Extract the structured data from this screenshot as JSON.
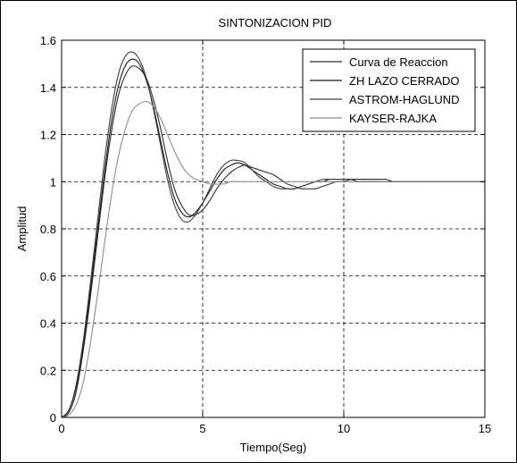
{
  "chart_data": {
    "type": "line",
    "title": "SINTONIZACION PID",
    "xlabel": "Tiempo(Seg)",
    "ylabel": "Amplitud",
    "xlim": [
      0,
      15
    ],
    "ylim": [
      0,
      1.6
    ],
    "xticks": [
      0,
      5,
      10,
      15
    ],
    "yticks": [
      0,
      0.2,
      0.4,
      0.6,
      0.8,
      1,
      1.2,
      1.4,
      1.6
    ],
    "xtick_labels": [
      "0",
      "5",
      "10",
      "15"
    ],
    "ytick_labels": [
      "0",
      "0.2",
      "0.4",
      "0.6",
      "0.8",
      "1",
      "1.2",
      "1.4",
      "1.6"
    ],
    "grid": true,
    "legend_position": "top-right",
    "series": [
      {
        "name": "Curva de Reaccion",
        "color": "#2a2a2a",
        "x": [
          0,
          0.25,
          0.5,
          0.75,
          1,
          1.25,
          1.5,
          1.75,
          2,
          2.25,
          2.5,
          2.75,
          3,
          3.25,
          3.5,
          3.75,
          4,
          4.25,
          4.5,
          4.75,
          5,
          5.25,
          5.5,
          5.75,
          6,
          6.25,
          6.5,
          6.75,
          7,
          7.25,
          7.5,
          7.75,
          8,
          8.25,
          8.5,
          8.75,
          9,
          9.25,
          9.5,
          9.75,
          10,
          10.25,
          10.5,
          10.75,
          11,
          11.25,
          11.5,
          11.75,
          12,
          12.25,
          12.5,
          12.75,
          13,
          13.25,
          13.5,
          13.75,
          14,
          14.25,
          14.5,
          14.75,
          15
        ],
        "values": [
          0,
          0.02,
          0.1,
          0.27,
          0.49,
          0.74,
          0.99,
          1.2,
          1.36,
          1.45,
          1.49,
          1.48,
          1.44,
          1.35,
          1.23,
          1.09,
          0.97,
          0.9,
          0.86,
          0.86,
          0.88,
          0.92,
          0.97,
          1.01,
          1.04,
          1.06,
          1.07,
          1.06,
          1.05,
          1.04,
          1.03,
          1.01,
          0.99,
          0.98,
          0.97,
          0.97,
          0.97,
          0.98,
          0.99,
          1,
          1,
          1.01,
          1.01,
          1.01,
          1.01,
          1.01,
          1.01,
          1,
          1,
          1,
          1,
          1,
          1,
          1,
          1,
          1,
          1,
          1,
          1,
          1,
          1
        ]
      },
      {
        "name": "ZH LAZO CERRADO",
        "color": "#1a1a1a",
        "x": [
          0,
          0.25,
          0.5,
          0.75,
          1,
          1.25,
          1.5,
          1.75,
          2,
          2.25,
          2.5,
          2.75,
          3,
          3.25,
          3.5,
          3.75,
          4,
          4.25,
          4.5,
          4.75,
          5,
          5.25,
          5.5,
          5.75,
          6,
          6.25,
          6.5,
          6.75,
          7,
          7.25,
          7.5,
          7.75,
          8,
          8.25,
          8.5,
          8.75,
          9,
          9.25,
          9.5,
          9.75,
          10,
          10.25,
          10.5,
          10.75,
          11,
          11.25,
          11.5,
          11.75,
          12,
          12.25,
          12.5,
          12.75,
          13,
          13.25,
          13.5,
          13.75,
          14,
          14.25,
          14.5,
          14.75,
          15
        ],
        "values": [
          0,
          0.03,
          0.12,
          0.29,
          0.52,
          0.77,
          1.02,
          1.24,
          1.4,
          1.49,
          1.52,
          1.5,
          1.43,
          1.32,
          1.18,
          1.04,
          0.93,
          0.87,
          0.85,
          0.87,
          0.91,
          0.96,
          1.01,
          1.05,
          1.07,
          1.08,
          1.07,
          1.05,
          1.03,
          1.01,
          0.99,
          0.98,
          0.97,
          0.97,
          0.98,
          0.99,
          1,
          1,
          1.01,
          1.01,
          1.01,
          1.01,
          1,
          1,
          1,
          1,
          1,
          1,
          1,
          1,
          1,
          1,
          1,
          1,
          1,
          1,
          1,
          1,
          1,
          1,
          1
        ]
      },
      {
        "name": "ASTROM-HAGLUND",
        "color": "#3c3c3c",
        "x": [
          0,
          0.25,
          0.5,
          0.75,
          1,
          1.25,
          1.5,
          1.75,
          2,
          2.25,
          2.5,
          2.75,
          3,
          3.25,
          3.5,
          3.75,
          4,
          4.25,
          4.5,
          4.75,
          5,
          5.25,
          5.5,
          5.75,
          6,
          6.25,
          6.5,
          6.75,
          7,
          7.25,
          7.5,
          7.75,
          8,
          8.25,
          8.5,
          8.75,
          9,
          9.25,
          9.5,
          9.75,
          10,
          10.25,
          10.5,
          10.75,
          11,
          11.25,
          11.5,
          11.75,
          12,
          12.25,
          12.5,
          12.75,
          13,
          13.25,
          13.5,
          13.75,
          14,
          14.25,
          14.5,
          14.75,
          15
        ],
        "values": [
          0,
          0.03,
          0.13,
          0.31,
          0.55,
          0.81,
          1.07,
          1.29,
          1.45,
          1.53,
          1.55,
          1.52,
          1.44,
          1.31,
          1.16,
          1.01,
          0.9,
          0.84,
          0.83,
          0.86,
          0.91,
          0.97,
          1.03,
          1.07,
          1.09,
          1.09,
          1.08,
          1.05,
          1.02,
          1,
          0.98,
          0.97,
          0.97,
          0.97,
          0.98,
          0.99,
          1,
          1.01,
          1.01,
          1.01,
          1.01,
          1.01,
          1,
          1,
          1,
          1,
          1,
          1,
          1,
          1,
          1,
          1,
          1,
          1,
          1,
          1,
          1,
          1,
          1,
          1,
          1
        ]
      },
      {
        "name": "KAYSER-RAJKA",
        "color": "#8c8c8c",
        "x": [
          0,
          0.25,
          0.5,
          0.75,
          1,
          1.25,
          1.5,
          1.75,
          2,
          2.25,
          2.5,
          2.75,
          3,
          3.25,
          3.5,
          3.75,
          4,
          4.25,
          4.5,
          4.75,
          5,
          5.25,
          5.5,
          5.75,
          6,
          6.25,
          6.5,
          6.75,
          7,
          7.25,
          7.5,
          7.75,
          8,
          8.25,
          8.5,
          8.75,
          9,
          9.25,
          9.5,
          9.75,
          10,
          10.25,
          10.5,
          10.75,
          11,
          11.25,
          11.5,
          11.75,
          12,
          12.25,
          12.5,
          12.75,
          13,
          13.25,
          13.5,
          13.75,
          14,
          14.25,
          14.5,
          14.75,
          15
        ],
        "values": [
          0,
          0.01,
          0.05,
          0.14,
          0.3,
          0.5,
          0.72,
          0.93,
          1.1,
          1.22,
          1.3,
          1.33,
          1.34,
          1.32,
          1.27,
          1.2,
          1.13,
          1.07,
          1.03,
          1.01,
          1,
          0.99,
          0.99,
          0.99,
          1,
          1,
          1,
          1,
          1,
          1,
          1,
          1,
          1,
          1,
          1,
          1,
          1,
          1,
          1,
          1,
          1,
          1,
          1,
          1,
          1,
          1,
          1,
          1,
          1,
          1,
          1,
          1,
          1,
          1,
          1,
          1,
          1,
          1,
          1,
          1,
          1
        ]
      }
    ]
  }
}
